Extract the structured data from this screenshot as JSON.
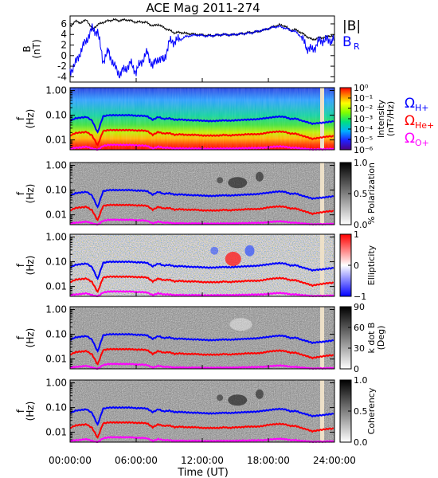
{
  "title": "ACE Mag 2011-274",
  "x_axis": {
    "label": "Time (UT)",
    "ticks": [
      "00:00:00",
      "06:00:00",
      "12:00:00",
      "18:00:00",
      "24:00:00"
    ],
    "hours": [
      0,
      6,
      12,
      18,
      24
    ]
  },
  "legend_b": {
    "total": "|B|",
    "radial_main": "B",
    "radial_sub": "R"
  },
  "legend_gyro": [
    {
      "main": "Ω",
      "sub": "H+",
      "color": "#0000ff"
    },
    {
      "main": "Ω",
      "sub": "He+",
      "color": "#ff0000"
    },
    {
      "main": "Ω",
      "sub": "O+",
      "color": "#ff00ff"
    }
  ],
  "freq_ylabel": {
    "main": "f",
    "unit": "(Hz)"
  },
  "freq_ticks": [
    "1.00",
    "0.10",
    "0.01"
  ],
  "colors": {
    "b_total": "#000000",
    "b_radial": "#0000ff",
    "h_plus": "#0000ff",
    "he_plus": "#ff0000",
    "o_plus": "#ff00ff",
    "gap": "#ede0c8"
  },
  "chart_data": [
    {
      "type": "line",
      "panel": "magnetic-field",
      "ylabel_main": "B",
      "ylabel_unit": "(nT)",
      "yticks": [
        "6",
        "4",
        "2",
        "0",
        "-2",
        "-4"
      ],
      "ylim": [
        -5,
        7.5
      ],
      "xlim": [
        0,
        24
      ],
      "series": [
        {
          "name": "|B|",
          "x": [
            0,
            0.5,
            1,
            1.5,
            2,
            2.5,
            3,
            3.5,
            4,
            4.5,
            5,
            5.5,
            6,
            6.5,
            7,
            7.5,
            8,
            8.5,
            9,
            9.5,
            10,
            10.5,
            11,
            11.5,
            12,
            12.5,
            13,
            13.5,
            14,
            14.5,
            15,
            15.5,
            16,
            16.5,
            17,
            17.5,
            18,
            18.5,
            19,
            19.5,
            20,
            20.5,
            21,
            21.5,
            22,
            22.5,
            23,
            23.5,
            24
          ],
          "y": [
            5.5,
            6.5,
            6.2,
            6.8,
            5.0,
            5.8,
            6.3,
            6.6,
            6.8,
            6.6,
            6.8,
            6.6,
            6.3,
            6.4,
            6.2,
            5.6,
            5.9,
            5.3,
            4.8,
            4.3,
            4.4,
            4.2,
            4.1,
            4.0,
            3.9,
            3.8,
            3.8,
            3.9,
            4.0,
            3.9,
            4.0,
            4.1,
            4.3,
            4.4,
            4.5,
            4.8,
            5.1,
            5.5,
            5.8,
            5.6,
            4.8,
            4.9,
            4.3,
            3.6,
            3.0,
            3.3,
            3.4,
            3.7,
            3.8
          ]
        },
        {
          "name": "B_R",
          "x": [
            0,
            0.5,
            1,
            1.5,
            2,
            2.5,
            3,
            3.5,
            4,
            4.5,
            5,
            5.5,
            6,
            6.5,
            7,
            7.5,
            8,
            8.5,
            9,
            9.5,
            10,
            10.5,
            11,
            11.5,
            12,
            12.5,
            13,
            13.5,
            14,
            14.5,
            15,
            15.5,
            16,
            16.5,
            17,
            17.5,
            18,
            18.5,
            19,
            19.5,
            20,
            20.5,
            21,
            21.5,
            22,
            22.5,
            23,
            23.5,
            24
          ],
          "y": [
            -3.0,
            -1.5,
            1.0,
            3.0,
            5.0,
            4.5,
            -1.0,
            0.8,
            -2.0,
            -3.5,
            -2.5,
            -1.5,
            -3.0,
            -1.0,
            0.5,
            -2.0,
            -0.5,
            -1.0,
            2.5,
            2.8,
            3.0,
            3.6,
            3.8,
            3.9,
            3.8,
            3.7,
            3.8,
            3.9,
            4.0,
            3.9,
            4.0,
            4.1,
            4.2,
            4.3,
            4.6,
            4.8,
            5.1,
            5.4,
            5.5,
            5.2,
            4.8,
            4.5,
            3.5,
            1.5,
            1.0,
            2.5,
            3.0,
            2.8,
            3.2
          ]
        }
      ]
    },
    {
      "type": "heatmap",
      "panel": "intensity",
      "colorbar_label_main": "Intensity",
      "colorbar_label_unit": "(nT²/Hz)",
      "colorbar_ticks": [
        "10⁰",
        "10⁻¹",
        "10⁻²",
        "10⁻³",
        "10⁻⁴",
        "10⁻⁵",
        "10⁻⁶"
      ],
      "colorbar_range": [
        -6,
        0
      ],
      "ylim_hz": [
        0.004,
        1.3
      ],
      "colorscale": "rainbow"
    },
    {
      "type": "heatmap",
      "panel": "polarization",
      "colorbar_label_main": "% Polarization",
      "colorbar_ticks": [
        "1.0",
        "0.5",
        "0.0"
      ],
      "colorbar_range": [
        0,
        1
      ],
      "colorscale": "grayscale-inverted"
    },
    {
      "type": "heatmap",
      "panel": "ellipticity",
      "colorbar_label_main": "Ellipticity",
      "colorbar_ticks": [
        "1",
        "0",
        "−1"
      ],
      "colorbar_range": [
        -1,
        1
      ],
      "colorscale": "blue-white-red"
    },
    {
      "type": "heatmap",
      "panel": "wave-normal-angle",
      "colorbar_label_main": "k dot B",
      "colorbar_label_unit": "(Deg)",
      "colorbar_ticks": [
        "90",
        "60",
        "30",
        "0"
      ],
      "colorbar_range": [
        0,
        90
      ],
      "colorscale": "grayscale-inverted"
    },
    {
      "type": "heatmap",
      "panel": "coherency",
      "colorbar_label_main": "Coherency",
      "colorbar_ticks": [
        "1.0",
        "0.5",
        "0.0"
      ],
      "colorbar_range": [
        0,
        1
      ],
      "colorscale": "grayscale-inverted"
    },
    {
      "type": "line",
      "panel": "gyrofrequency-overlays",
      "x": [
        0,
        0.5,
        1,
        1.5,
        2,
        2.5,
        3,
        3.5,
        4,
        4.5,
        5,
        5.5,
        6,
        6.5,
        7,
        7.5,
        8,
        8.5,
        9,
        9.5,
        10,
        10.5,
        11,
        11.5,
        12,
        12.5,
        13,
        13.5,
        14,
        14.5,
        15,
        15.5,
        16,
        16.5,
        17,
        17.5,
        18,
        18.5,
        19,
        19.5,
        20,
        20.5,
        21,
        21.5,
        22,
        22.5,
        23,
        23.5,
        24
      ],
      "series": [
        {
          "name": "ΩH+",
          "y_hz": [
            0.06,
            0.075,
            0.08,
            0.085,
            0.06,
            0.02,
            0.09,
            0.1,
            0.1,
            0.1,
            0.1,
            0.1,
            0.095,
            0.095,
            0.09,
            0.065,
            0.085,
            0.07,
            0.075,
            0.065,
            0.067,
            0.064,
            0.062,
            0.062,
            0.06,
            0.058,
            0.058,
            0.06,
            0.062,
            0.06,
            0.062,
            0.064,
            0.066,
            0.067,
            0.069,
            0.074,
            0.078,
            0.084,
            0.088,
            0.085,
            0.07,
            0.073,
            0.06,
            0.053,
            0.045,
            0.048,
            0.05,
            0.054,
            0.056
          ]
        },
        {
          "name": "ΩHe+",
          "y_hz": [
            0.015,
            0.019,
            0.02,
            0.021,
            0.015,
            0.006,
            0.023,
            0.025,
            0.025,
            0.025,
            0.025,
            0.025,
            0.024,
            0.024,
            0.023,
            0.016,
            0.021,
            0.018,
            0.019,
            0.016,
            0.017,
            0.016,
            0.016,
            0.016,
            0.015,
            0.015,
            0.015,
            0.015,
            0.016,
            0.015,
            0.016,
            0.016,
            0.017,
            0.017,
            0.017,
            0.018,
            0.02,
            0.021,
            0.022,
            0.021,
            0.018,
            0.018,
            0.015,
            0.013,
            0.011,
            0.012,
            0.013,
            0.014,
            0.014
          ]
        },
        {
          "name": "ΩO+",
          "y_hz": [
            0.0045,
            0.0048,
            0.005,
            0.0053,
            0.0045,
            0.004,
            0.0057,
            0.0063,
            0.0063,
            0.0063,
            0.0063,
            0.0063,
            0.006,
            0.006,
            0.0057,
            0.0045,
            0.0053,
            0.0048,
            0.0048,
            0.0045,
            0.0046,
            0.0045,
            0.0045,
            0.0045,
            0.0044,
            0.0044,
            0.0044,
            0.0045,
            0.0045,
            0.0045,
            0.0045,
            0.0046,
            0.0046,
            0.0047,
            0.0047,
            0.0048,
            0.005,
            0.0053,
            0.0055,
            0.0053,
            0.0048,
            0.0048,
            0.0045,
            0.0043,
            0.0041,
            0.0042,
            0.0042,
            0.0043,
            0.0044
          ]
        }
      ]
    }
  ]
}
